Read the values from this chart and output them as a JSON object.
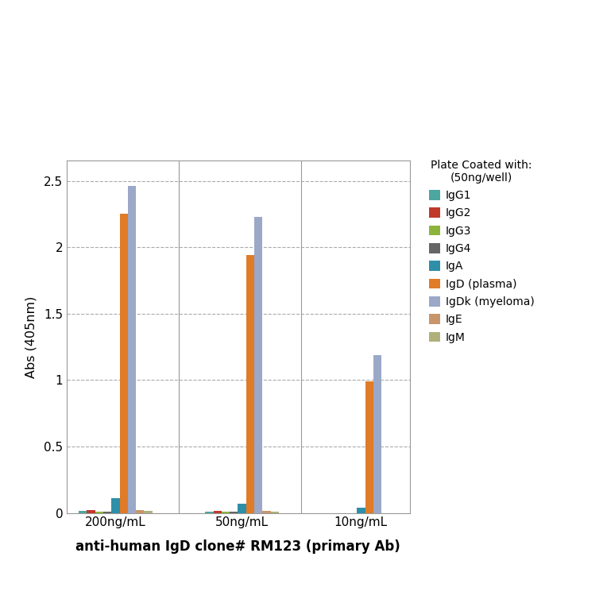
{
  "categories": [
    "200ng/mL",
    "50ng/mL",
    "10ng/mL"
  ],
  "series": [
    {
      "label": "IgG1",
      "color": "#4da6a0",
      "values": [
        0.018,
        0.012,
        0.0
      ]
    },
    {
      "label": "IgG2",
      "color": "#c0392b",
      "values": [
        0.022,
        0.015,
        0.0
      ]
    },
    {
      "label": "IgG3",
      "color": "#8db43a",
      "values": [
        0.01,
        0.01,
        0.0
      ]
    },
    {
      "label": "IgG4",
      "color": "#666666",
      "values": [
        0.008,
        0.008,
        0.0
      ]
    },
    {
      "label": "IgA",
      "color": "#2e8fa8",
      "values": [
        0.11,
        0.07,
        0.04
      ]
    },
    {
      "label": "IgD (plasma)",
      "color": "#e07b28",
      "values": [
        2.25,
        1.94,
        0.99
      ]
    },
    {
      "label": "IgDk (myeloma)",
      "color": "#9ba8c8",
      "values": [
        2.46,
        2.23,
        1.185
      ]
    },
    {
      "label": "IgE",
      "color": "#c8956a",
      "values": [
        0.02,
        0.018,
        0.0
      ]
    },
    {
      "label": "IgM",
      "color": "#b0b07a",
      "values": [
        0.018,
        0.012,
        0.0
      ]
    }
  ],
  "ylabel": "Abs (405nm)",
  "xlabel": "anti-human IgD clone# RM123 (primary Ab)",
  "legend_title": "Plate Coated with:\n(50ng/well)",
  "ylim": [
    0,
    2.65
  ],
  "yticks": [
    0,
    0.5,
    1.0,
    1.5,
    2.0,
    2.5
  ],
  "figsize": [
    7.64,
    7.64
  ],
  "dpi": 100,
  "bg_color": "#ffffff",
  "plot_bg_color": "#ffffff",
  "grid_color": "#aaaaaa",
  "outer_bg_color": "#ffffff"
}
